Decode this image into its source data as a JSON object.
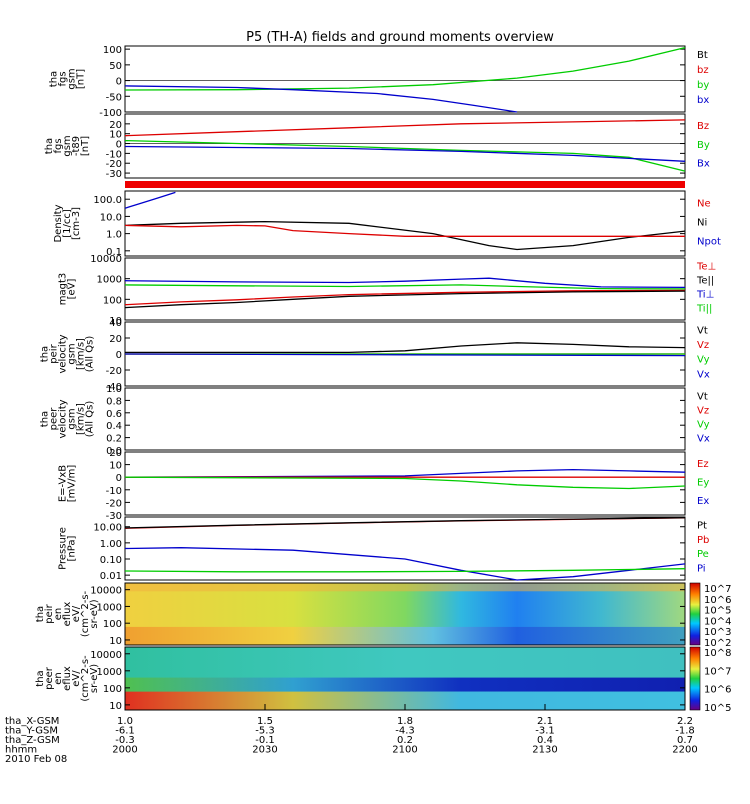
{
  "title": "P5 (TH-A) fields and ground moments overview",
  "chart_data": {
    "type": "line",
    "title": "P5 (TH-A) fields and ground moments overview",
    "time_axis": {
      "tick_labels": [
        "2000",
        "2030",
        "2100",
        "2130",
        "2200"
      ],
      "position_rows": [
        {
          "label": "tha_X-GSM",
          "values": [
            "1.0",
            "1.5",
            "1.8",
            "2.1",
            "2.2"
          ]
        },
        {
          "label": "tha_Y-GSM",
          "values": [
            "-6.1",
            "-5.3",
            "-4.3",
            "-3.1",
            "-1.8"
          ]
        },
        {
          "label": "tha_Z-GSM",
          "values": [
            "-0.3",
            "-0.1",
            "0.2",
            "0.4",
            "0.7"
          ]
        },
        {
          "label": "hhmm",
          "values": [
            "2000",
            "2030",
            "2100",
            "2130",
            "2200"
          ]
        }
      ],
      "date": "2010 Feb 08"
    },
    "panels": [
      {
        "id": "fgs-gsm",
        "ylabel": [
          "tha",
          "fgs",
          "gsm",
          "[nT]"
        ],
        "yticks": [
          "100",
          "50",
          "0",
          "-50",
          "-100"
        ],
        "ylim": [
          -100,
          110
        ],
        "scale": "linear",
        "legend": [
          {
            "name": "Bt",
            "color": "#000000"
          },
          {
            "name": "bz",
            "color": "#dd0000"
          },
          {
            "name": "by",
            "color": "#00cc00"
          },
          {
            "name": "bx",
            "color": "#0000cc"
          }
        ],
        "series": [
          {
            "name": "by",
            "color": "#00cc00",
            "x": [
              0,
              0.2,
              0.4,
              0.55,
              0.7,
              0.8,
              0.9,
              1.0
            ],
            "y": [
              -30,
              -29,
              -24,
              -13,
              8,
              30,
              62,
              105
            ]
          },
          {
            "name": "bx",
            "color": "#0000cc",
            "x": [
              0,
              0.2,
              0.3,
              0.45,
              0.55,
              0.62,
              0.7
            ],
            "y": [
              -17,
              -22,
              -29,
              -41,
              -60,
              -78,
              -100
            ]
          }
        ]
      },
      {
        "id": "fgs-gsm-t89",
        "ylabel": [
          "tha",
          "fgs",
          "gsm",
          "-t89",
          "[nT]"
        ],
        "yticks": [
          "20",
          "10",
          "0",
          "-10",
          "-20",
          "-30"
        ],
        "ylim": [
          -35,
          30
        ],
        "scale": "linear",
        "legend": [
          {
            "name": "Bz",
            "color": "#dd0000"
          },
          {
            "name": "By",
            "color": "#00cc00"
          },
          {
            "name": "Bx",
            "color": "#0000cc"
          }
        ],
        "series": [
          {
            "name": "Bz",
            "color": "#dd0000",
            "x": [
              0,
              0.2,
              0.4,
              0.6,
              0.8,
              1.0
            ],
            "y": [
              8,
              12,
              16,
              20,
              22,
              24
            ]
          },
          {
            "name": "By",
            "color": "#00cc00",
            "x": [
              0,
              0.2,
              0.4,
              0.6,
              0.8,
              0.9,
              1.0
            ],
            "y": [
              3,
              0,
              -3,
              -7,
              -10,
              -14,
              -28
            ]
          },
          {
            "name": "Bx",
            "color": "#0000cc",
            "x": [
              0,
              0.2,
              0.4,
              0.6,
              0.8,
              1.0
            ],
            "y": [
              -3,
              -4,
              -5,
              -8,
              -12,
              -18
            ]
          }
        ]
      },
      {
        "id": "density",
        "ylabel": [
          "Density",
          "[1/cc]",
          "[cm-3]"
        ],
        "yticks": [
          "100.0",
          "10.0",
          "1.0",
          "0.1"
        ],
        "ylim": [
          0.05,
          300
        ],
        "scale": "log",
        "legend": [
          {
            "name": "Ne",
            "color": "#dd0000"
          },
          {
            "name": "Ni",
            "color": "#000000"
          },
          {
            "name": "Npot",
            "color": "#0000cc"
          }
        ],
        "series": [
          {
            "name": "Ni",
            "color": "#000000",
            "x": [
              0,
              0.1,
              0.25,
              0.4,
              0.55,
              0.65,
              0.7,
              0.8,
              0.9,
              1.0
            ],
            "y": [
              3,
              4,
              5,
              4,
              1,
              0.2,
              0.12,
              0.2,
              0.6,
              1.4
            ]
          },
          {
            "name": "Ne",
            "color": "#dd0000",
            "x": [
              0,
              0.1,
              0.2,
              0.25,
              0.3,
              0.4,
              0.5,
              1.0
            ],
            "y": [
              3,
              2.5,
              3,
              2.8,
              1.5,
              1.0,
              0.7,
              0.7
            ]
          },
          {
            "name": "Npot",
            "color": "#0000cc",
            "x": [
              0,
              0.03,
              0.06,
              0.09
            ],
            "y": [
              30,
              60,
              120,
              250
            ]
          }
        ]
      },
      {
        "id": "temperature",
        "ylabel": [
          "magt3",
          "[eV]"
        ],
        "yticks": [
          "10000",
          "1000",
          "100",
          "10"
        ],
        "ylim": [
          10,
          10000
        ],
        "scale": "log",
        "legend": [
          {
            "name": "Te⊥",
            "color": "#dd0000"
          },
          {
            "name": "Te||",
            "color": "#000000"
          },
          {
            "name": "Ti⊥",
            "color": "#0000cc"
          },
          {
            "name": "Ti||",
            "color": "#00cc00"
          }
        ],
        "series": [
          {
            "name": "Ti⊥",
            "color": "#0000cc",
            "x": [
              0,
              0.2,
              0.4,
              0.5,
              0.6,
              0.65,
              0.75,
              0.85,
              1.0
            ],
            "y": [
              800,
              700,
              650,
              750,
              950,
              1050,
              600,
              400,
              380
            ]
          },
          {
            "name": "Ti||",
            "color": "#00cc00",
            "x": [
              0,
              0.2,
              0.4,
              0.6,
              0.7,
              0.85,
              1.0
            ],
            "y": [
              500,
              450,
              420,
              500,
              420,
              330,
              320
            ]
          },
          {
            "name": "Te⊥",
            "color": "#dd0000",
            "x": [
              0,
              0.1,
              0.2,
              0.3,
              0.4,
              0.6,
              0.8,
              1.0
            ],
            "y": [
              55,
              75,
              95,
              130,
              170,
              220,
              260,
              270
            ]
          },
          {
            "name": "Te||",
            "color": "#000000",
            "x": [
              0,
              0.1,
              0.2,
              0.3,
              0.4,
              0.6,
              0.8,
              1.0
            ],
            "y": [
              40,
              55,
              70,
              100,
              140,
              190,
              230,
              250
            ]
          }
        ]
      },
      {
        "id": "peir-velocity",
        "ylabel": [
          "tha",
          "peir",
          "velocity",
          "gsm",
          "[km/s]",
          "(All Qs)"
        ],
        "yticks": [
          "40",
          "20",
          "0",
          "-20",
          "-40"
        ],
        "ylim": [
          -40,
          40
        ],
        "scale": "linear",
        "legend": [
          {
            "name": "Vt",
            "color": "#000000"
          },
          {
            "name": "Vz",
            "color": "#dd0000"
          },
          {
            "name": "Vy",
            "color": "#00cc00"
          },
          {
            "name": "Vx",
            "color": "#0000cc"
          }
        ],
        "series": [
          {
            "name": "Vt",
            "color": "#000000",
            "x": [
              0,
              0.4,
              0.5,
              0.6,
              0.7,
              0.8,
              0.9,
              1.0
            ],
            "y": [
              2,
              2,
              4,
              10,
              14,
              12,
              9,
              8
            ]
          },
          {
            "name": "Vz",
            "color": "#dd0000",
            "x": [
              0,
              0.5,
              1.0
            ],
            "y": [
              0,
              0,
              0
            ]
          },
          {
            "name": "Vy",
            "color": "#00cc00",
            "x": [
              0,
              0.5,
              1.0
            ],
            "y": [
              0,
              0,
              0
            ]
          },
          {
            "name": "Vx",
            "color": "#0000cc",
            "x": [
              0,
              0.5,
              1.0
            ],
            "y": [
              0,
              -1,
              -2
            ]
          }
        ]
      },
      {
        "id": "peer-velocity",
        "ylabel": [
          "tha",
          "peer",
          "velocity",
          "gsm",
          "[km/s]",
          "(All Qs)"
        ],
        "yticks": [
          "1.0",
          "0.8",
          "0.6",
          "0.4",
          "0.2",
          "0.0"
        ],
        "ylim": [
          0,
          1
        ],
        "scale": "linear",
        "legend": [
          {
            "name": "Vt",
            "color": "#000000"
          },
          {
            "name": "Vz",
            "color": "#dd0000"
          },
          {
            "name": "Vy",
            "color": "#00cc00"
          },
          {
            "name": "Vx",
            "color": "#0000cc"
          }
        ],
        "series": []
      },
      {
        "id": "efield",
        "ylabel": [
          "E=-VxB",
          "[mV/m]"
        ],
        "yticks": [
          "20",
          "10",
          "0",
          "-10",
          "-20",
          "-30"
        ],
        "ylim": [
          -30,
          20
        ],
        "scale": "linear",
        "legend": [
          {
            "name": "Ez",
            "color": "#dd0000"
          },
          {
            "name": "Ey",
            "color": "#00cc00"
          },
          {
            "name": "Ex",
            "color": "#0000cc"
          }
        ],
        "series": [
          {
            "name": "Ex",
            "color": "#0000cc",
            "x": [
              0,
              0.5,
              0.6,
              0.7,
              0.8,
              0.9,
              1.0
            ],
            "y": [
              0,
              1,
              3,
              5,
              6,
              5,
              4
            ]
          },
          {
            "name": "Ez",
            "color": "#dd0000",
            "x": [
              0,
              0.5,
              1.0
            ],
            "y": [
              0,
              0,
              0
            ]
          },
          {
            "name": "Ey",
            "color": "#00cc00",
            "x": [
              0,
              0.5,
              0.6,
              0.7,
              0.8,
              0.9,
              1.0
            ],
            "y": [
              0,
              -1,
              -3,
              -6,
              -8,
              -9,
              -7
            ]
          }
        ]
      },
      {
        "id": "pressure",
        "ylabel": [
          "Pressure",
          "[nPa]"
        ],
        "yticks": [
          "10.00",
          "1.00",
          "0.10",
          "0.01"
        ],
        "ylim": [
          0.005,
          40
        ],
        "scale": "log",
        "legend": [
          {
            "name": "Pt",
            "color": "#000000"
          },
          {
            "name": "Pb",
            "color": "#dd0000"
          },
          {
            "name": "Pe",
            "color": "#00cc00"
          },
          {
            "name": "Pi",
            "color": "#0000cc"
          }
        ],
        "series": [
          {
            "name": "Pb",
            "color": "#dd0000",
            "x": [
              0,
              0.2,
              0.4,
              0.6,
              0.8,
              1.0
            ],
            "y": [
              8,
              12,
              17,
              23,
              29,
              35
            ]
          },
          {
            "name": "Pt",
            "color": "#000000",
            "x": [
              0,
              0.2,
              0.4,
              0.6,
              0.8,
              1.0
            ],
            "y": [
              8.5,
              12.5,
              17.5,
              23.5,
              29.5,
              36
            ]
          },
          {
            "name": "Pi",
            "color": "#0000cc",
            "x": [
              0,
              0.1,
              0.3,
              0.5,
              0.6,
              0.7,
              0.8,
              0.9,
              1.0
            ],
            "y": [
              0.45,
              0.5,
              0.35,
              0.1,
              0.02,
              0.005,
              0.008,
              0.02,
              0.05
            ]
          },
          {
            "name": "Pe",
            "color": "#00cc00",
            "x": [
              0,
              0.2,
              0.4,
              0.6,
              0.8,
              1.0
            ],
            "y": [
              0.018,
              0.016,
              0.016,
              0.017,
              0.02,
              0.025
            ]
          }
        ]
      },
      {
        "id": "peir-spectrogram",
        "type": "heatmap",
        "ylabel": [
          "tha",
          "peir",
          "en",
          "eflux",
          "eV/",
          "(cm^2-s-",
          "sr-eV)"
        ],
        "yticks": [
          "10000",
          "1000",
          "100",
          "10"
        ],
        "ylim": [
          5,
          25000
        ],
        "scale": "log",
        "colorbar": {
          "ticks": [
            "10^7",
            "10^6",
            "10^5",
            "10^4",
            "10^3",
            "10^2"
          ]
        }
      },
      {
        "id": "peer-spectrogram",
        "type": "heatmap",
        "ylabel": [
          "tha",
          "peer",
          "en",
          "eflux",
          "eV/",
          "(cm^2-s-",
          "sr-eV)"
        ],
        "yticks": [
          "10000",
          "1000",
          "100",
          "10"
        ],
        "ylim": [
          5,
          25000
        ],
        "scale": "log",
        "colorbar": {
          "ticks": [
            "10^8",
            "10^7",
            "10^6",
            "10^5"
          ]
        }
      }
    ]
  }
}
